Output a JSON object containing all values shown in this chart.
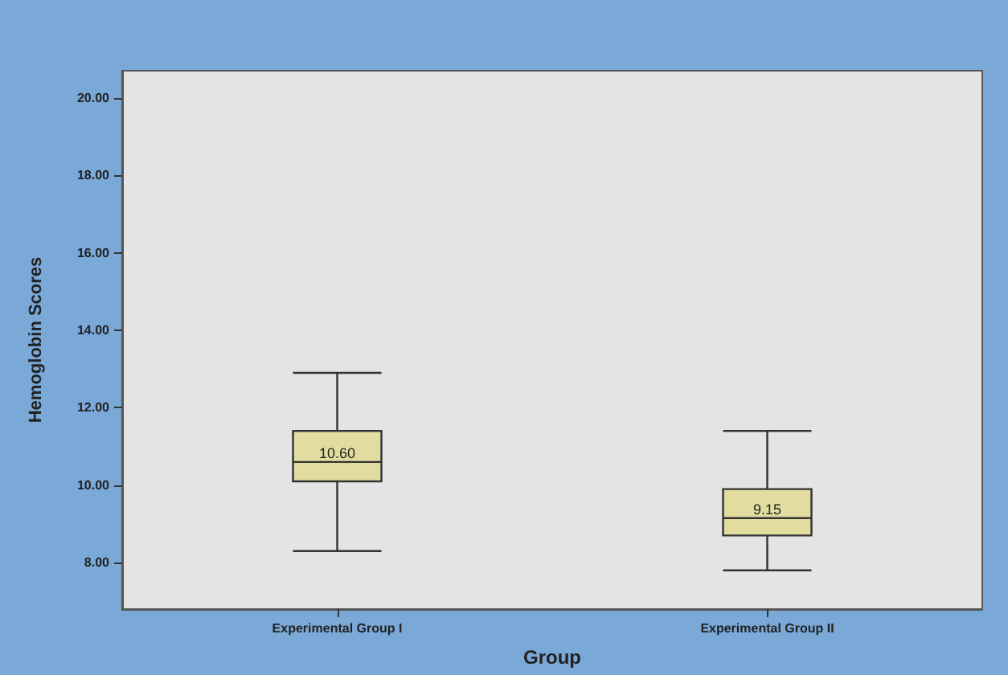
{
  "chart_data": {
    "type": "box",
    "xlabel": "Group",
    "ylabel": "Hemoglobin Scores",
    "categories": [
      "Experimental Group I",
      "Experimental Group II"
    ],
    "series": [
      {
        "color": "#e2dca0",
        "boxes": [
          {
            "low": 8.3,
            "q1": 10.1,
            "median": 10.6,
            "q3": 11.4,
            "high": 12.9
          },
          {
            "low": 7.8,
            "q1": 8.7,
            "median": 9.15,
            "q3": 9.9,
            "high": 11.4
          }
        ]
      }
    ],
    "annotations": [
      {
        "text": "10.60",
        "x": "Experimental Group I",
        "y": 10.6
      },
      {
        "text": "9.15",
        "x": "Experimental Group II",
        "y": 9.15
      }
    ],
    "ylim": [
      6.8,
      20.7
    ],
    "yticks": [
      {
        "value": 8,
        "label": "8.00"
      },
      {
        "value": 10,
        "label": "10.00"
      },
      {
        "value": 12,
        "label": "12.00"
      },
      {
        "value": 14,
        "label": "14.00"
      },
      {
        "value": 16,
        "label": "16.00"
      },
      {
        "value": 18,
        "label": "18.00"
      },
      {
        "value": 20,
        "label": "20.00"
      }
    ],
    "grid": false
  }
}
